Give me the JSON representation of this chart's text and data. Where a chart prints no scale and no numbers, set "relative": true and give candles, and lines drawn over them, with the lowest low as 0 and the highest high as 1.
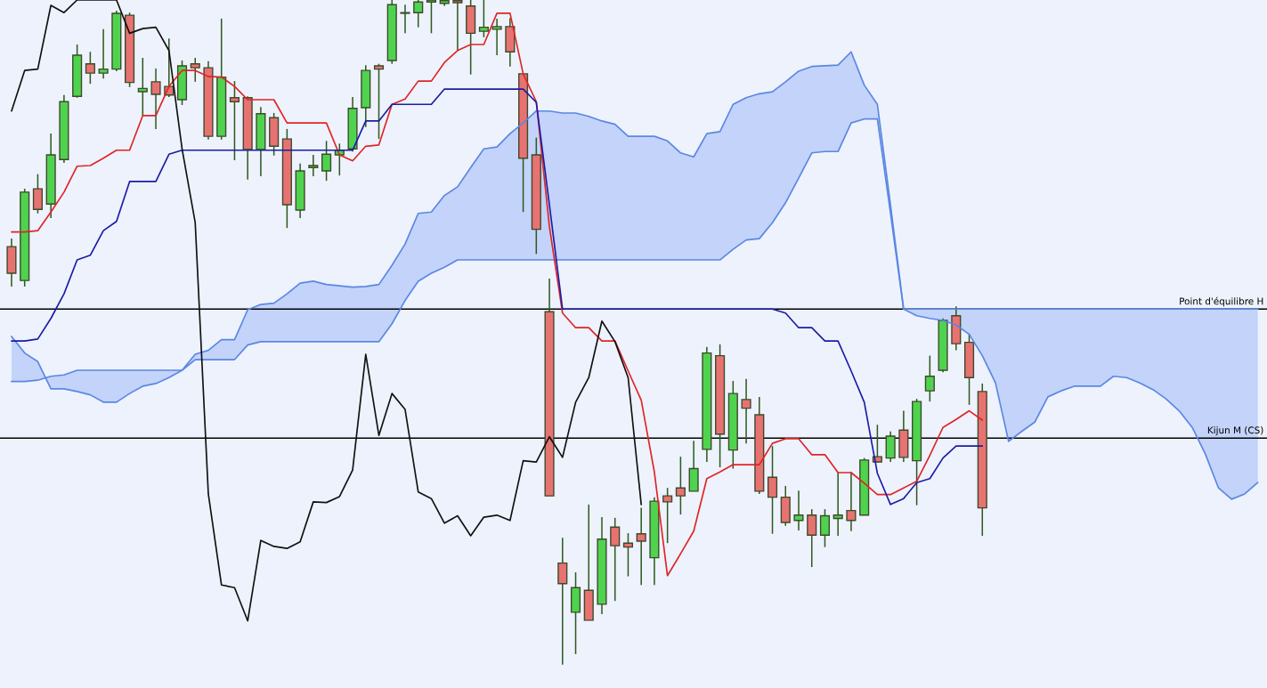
{
  "chart_data": {
    "type": "candlestick",
    "relative": true,
    "tick_labels": false,
    "categories": [
      null,
      null,
      null,
      null,
      null,
      null,
      null,
      null,
      null,
      null,
      null,
      null,
      null,
      null,
      null,
      null,
      null,
      null,
      null,
      null,
      null,
      null,
      null,
      null,
      null,
      null,
      null,
      null,
      null,
      null,
      null,
      null,
      null,
      null,
      null,
      null,
      null,
      null,
      null,
      null,
      null,
      null,
      null,
      null,
      null,
      null,
      null,
      null,
      null,
      null,
      null,
      null,
      null,
      null,
      null,
      null,
      null,
      null,
      null,
      null,
      null,
      null,
      null,
      null,
      null,
      null,
      null,
      null,
      null,
      null,
      null,
      null,
      null,
      null,
      null,
      null,
      null,
      null,
      null,
      null,
      null,
      null,
      null,
      null,
      null,
      null,
      null,
      null,
      null,
      null,
      null,
      null,
      null,
      null,
      null,
      null
    ],
    "ohlc": [
      [
        0.629,
        0.641,
        0.569,
        0.589
      ],
      [
        0.578,
        0.716,
        0.569,
        0.711
      ],
      [
        0.716,
        0.738,
        0.679,
        0.685
      ],
      [
        0.693,
        0.799,
        0.672,
        0.767
      ],
      [
        0.76,
        0.857,
        0.755,
        0.847
      ],
      [
        0.855,
        0.933,
        0.853,
        0.917
      ],
      [
        0.904,
        0.922,
        0.874,
        0.89
      ],
      [
        0.89,
        0.956,
        0.882,
        0.896
      ],
      [
        0.896,
        0.984,
        0.893,
        0.98
      ],
      [
        0.977,
        0.981,
        0.869,
        0.876
      ],
      [
        0.862,
        0.913,
        0.826,
        0.867
      ],
      [
        0.877,
        0.897,
        0.806,
        0.858
      ],
      [
        0.87,
        0.942,
        0.854,
        0.857
      ],
      [
        0.85,
        0.909,
        0.842,
        0.901
      ],
      [
        0.904,
        0.913,
        0.877,
        0.898
      ],
      [
        0.898,
        0.908,
        0.79,
        0.795
      ],
      [
        0.795,
        0.972,
        0.79,
        0.884
      ],
      [
        0.853,
        0.878,
        0.759,
        0.847
      ],
      [
        0.853,
        0.855,
        0.73,
        0.775
      ],
      [
        0.775,
        0.839,
        0.735,
        0.829
      ],
      [
        0.823,
        0.83,
        0.766,
        0.78
      ],
      [
        0.791,
        0.806,
        0.657,
        0.692
      ],
      [
        0.684,
        0.754,
        0.672,
        0.743
      ],
      [
        0.748,
        0.767,
        0.735,
        0.751
      ],
      [
        0.743,
        0.788,
        0.728,
        0.768
      ],
      [
        0.767,
        0.784,
        0.736,
        0.774
      ],
      [
        0.776,
        0.854,
        0.772,
        0.837
      ],
      [
        0.838,
        0.902,
        0.809,
        0.894
      ],
      [
        0.901,
        0.904,
        0.791,
        0.896
      ],
      [
        0.909,
        1,
        0.904,
        0.993
      ],
      [
        0.98,
        0.993,
        0.95,
        0.981
      ],
      [
        0.981,
        1,
        0.959,
        0.997
      ],
      [
        0.997,
        1,
        0.95,
        1
      ],
      [
        0.995,
        1,
        0.991,
        0.999
      ],
      [
        0.999,
        1,
        0.924,
        0.996
      ],
      [
        0.991,
        1,
        0.888,
        0.95
      ],
      [
        0.953,
        1,
        0.944,
        0.959
      ],
      [
        0.956,
        0.972,
        0.917,
        0.96
      ],
      [
        0.96,
        0.973,
        0.9,
        0.922
      ],
      [
        0.889,
        0.889,
        0.681,
        0.762
      ],
      [
        0.767,
        0.793,
        0.618,
        0.655
      ],
      [
        0.531,
        0.581,
        0.254,
        0.254
      ],
      [
        0.153,
        0.191,
        0,
        0.122
      ],
      [
        0.079,
        0.139,
        0.016,
        0.116
      ],
      [
        0.112,
        0.241,
        0.067,
        0.067
      ],
      [
        0.091,
        0.222,
        0.076,
        0.189
      ],
      [
        0.207,
        0.221,
        0.096,
        0.179
      ],
      [
        0.183,
        0.198,
        0.133,
        0.177
      ],
      [
        0.197,
        0.236,
        0.12,
        0.186
      ],
      [
        0.161,
        0.252,
        0.12,
        0.246
      ],
      [
        0.254,
        0.266,
        0.183,
        0.245
      ],
      [
        0.266,
        0.313,
        0.226,
        0.254
      ],
      [
        0.261,
        0.337,
        0.261,
        0.295
      ],
      [
        0.324,
        0.478,
        0.305,
        0.469
      ],
      [
        0.465,
        0.482,
        0.297,
        0.347
      ],
      [
        0.323,
        0.427,
        0.295,
        0.408
      ],
      [
        0.399,
        0.43,
        0.333,
        0.386
      ],
      [
        0.376,
        0.403,
        0.257,
        0.261
      ],
      [
        0.282,
        0.329,
        0.197,
        0.252
      ],
      [
        0.252,
        0.269,
        0.209,
        0.214
      ],
      [
        0.217,
        0.262,
        0.202,
        0.225
      ],
      [
        0.225,
        0.234,
        0.147,
        0.195
      ],
      [
        0.195,
        0.234,
        0.177,
        0.224
      ],
      [
        0.22,
        0.29,
        0.194,
        0.225
      ],
      [
        0.232,
        0.29,
        0.201,
        0.217
      ],
      [
        0.225,
        0.311,
        0.225,
        0.308
      ],
      [
        0.313,
        0.361,
        0.304,
        0.305
      ],
      [
        0.311,
        0.351,
        0.305,
        0.344
      ],
      [
        0.353,
        0.382,
        0.305,
        0.312
      ],
      [
        0.307,
        0.4,
        0.24,
        0.396
      ],
      [
        0.412,
        0.465,
        0.396,
        0.434
      ],
      [
        0.443,
        0.521,
        0.44,
        0.518
      ],
      [
        0.525,
        0.539,
        0.473,
        0.483
      ],
      [
        0.485,
        0.498,
        0.391,
        0.432
      ],
      [
        0.411,
        0.423,
        0.194,
        0.236
      ],
      null,
      null,
      null,
      null,
      null,
      null,
      null,
      null,
      null,
      null,
      null,
      null,
      null,
      null,
      null,
      null,
      null,
      null,
      null,
      null,
      null
    ],
    "series": [
      {
        "type": "line",
        "color": "#5b87e2",
        "values": [
          0.494,
          0.469,
          0.456,
          0.415,
          0.415,
          0.411,
          0.406,
          0.395,
          0.395,
          0.408,
          0.419,
          0.423,
          0.432,
          0.443,
          0.467,
          0.473,
          0.489,
          0.489,
          0.534,
          0.542,
          0.544,
          0.558,
          0.574,
          0.577,
          0.572,
          0.57,
          0.568,
          0.569,
          0.572,
          0.601,
          0.633,
          0.679,
          0.681,
          0.706,
          0.719,
          0.748,
          0.776,
          0.779,
          0.799,
          0.815,
          0.833,
          0.833,
          0.83,
          0.83,
          0.825,
          0.818,
          0.813,
          0.795,
          0.795,
          0.795,
          0.788,
          0.77,
          0.764,
          0.799,
          0.802,
          0.843,
          0.853,
          0.859,
          0.862,
          0.877,
          0.893,
          0.9,
          0.901,
          0.902,
          0.922,
          0.872,
          0.843,
          0.692,
          0.535,
          0.525,
          0.521,
          0.518,
          0.511,
          0.497,
          0.465,
          0.424,
          0.336,
          0.351,
          0.365,
          0.403,
          0.412,
          0.419,
          0.419,
          0.419,
          0.434,
          0.432,
          0.424,
          0.414,
          0.4,
          0.382,
          0.357,
          0.317,
          0.266,
          0.249,
          0.257,
          0.274
        ]
      },
      {
        "type": "line",
        "color": "#5b87e2",
        "values": [
          0.426,
          0.426,
          0.428,
          0.434,
          0.436,
          0.443,
          0.443,
          0.443,
          0.443,
          0.443,
          0.443,
          0.443,
          0.443,
          0.443,
          0.459,
          0.459,
          0.459,
          0.459,
          0.481,
          0.486,
          0.486,
          0.486,
          0.486,
          0.486,
          0.486,
          0.486,
          0.486,
          0.486,
          0.486,
          0.513,
          0.548,
          0.577,
          0.589,
          0.598,
          0.609,
          0.609,
          0.609,
          0.609,
          0.609,
          0.609,
          0.609,
          0.609,
          0.609,
          0.609,
          0.609,
          0.609,
          0.609,
          0.609,
          0.609,
          0.609,
          0.609,
          0.609,
          0.609,
          0.609,
          0.609,
          0.625,
          0.639,
          0.641,
          0.665,
          0.695,
          0.732,
          0.77,
          0.772,
          0.772,
          0.815,
          0.821,
          0.821,
          0.679,
          0.535,
          0.535,
          0.535,
          0.535,
          0.535,
          0.535,
          0.535,
          0.535,
          0.535,
          0.535,
          0.535,
          0.535,
          0.535,
          0.535,
          0.535,
          0.535,
          0.535,
          0.535,
          0.535,
          0.535,
          0.535,
          0.535,
          0.535,
          0.535,
          0.535,
          0.535,
          0.535,
          0.535
        ]
      },
      {
        "type": "line",
        "color": "#e02424",
        "values": [
          0.651,
          0.651,
          0.653,
          0.681,
          0.711,
          0.75,
          0.751,
          0.762,
          0.774,
          0.774,
          0.826,
          0.826,
          0.87,
          0.894,
          0.894,
          0.885,
          0.884,
          0.87,
          0.85,
          0.85,
          0.85,
          0.815,
          0.815,
          0.815,
          0.815,
          0.767,
          0.758,
          0.78,
          0.782,
          0.843,
          0.851,
          0.878,
          0.878,
          0.906,
          0.924,
          0.933,
          0.933,
          0.98,
          0.98,
          0.889,
          0.847,
          0.659,
          0.529,
          0.507,
          0.507,
          0.487,
          0.487,
          0.442,
          0.398,
          0.29,
          0.134,
          0.167,
          0.201,
          0.28,
          0.29,
          0.301,
          0.301,
          0.301,
          0.333,
          0.34,
          0.34,
          0.316,
          0.316,
          0.289,
          0.289,
          0.273,
          0.256,
          0.256,
          0.266,
          0.276,
          0.315,
          0.357,
          0.369,
          0.382,
          0.368,
          null,
          null,
          null,
          null,
          null,
          null,
          null,
          null,
          null,
          null,
          null,
          null,
          null,
          null,
          null,
          null,
          null,
          null,
          null,
          null,
          null
        ]
      },
      {
        "type": "line",
        "color": "#1c1ca6",
        "values": [
          0.487,
          0.487,
          0.49,
          0.521,
          0.558,
          0.609,
          0.616,
          0.653,
          0.667,
          0.727,
          0.727,
          0.727,
          0.768,
          0.774,
          0.774,
          0.774,
          0.774,
          0.774,
          0.774,
          0.774,
          0.774,
          0.774,
          0.774,
          0.774,
          0.774,
          0.774,
          0.774,
          0.818,
          0.818,
          0.843,
          0.843,
          0.843,
          0.843,
          0.866,
          0.866,
          0.866,
          0.866,
          0.866,
          0.866,
          0.866,
          0.846,
          0.692,
          0.535,
          0.535,
          0.535,
          0.535,
          0.535,
          0.535,
          0.535,
          0.535,
          0.535,
          0.535,
          0.535,
          0.535,
          0.535,
          0.535,
          0.535,
          0.535,
          0.535,
          0.529,
          0.507,
          0.507,
          0.487,
          0.487,
          0.442,
          0.395,
          0.288,
          0.241,
          0.25,
          0.274,
          0.28,
          0.311,
          0.329,
          0.329,
          0.329,
          null,
          null,
          null,
          null,
          null,
          null,
          null,
          null,
          null,
          null,
          null,
          null,
          null,
          null,
          null,
          null,
          null,
          null,
          null,
          null,
          null
        ]
      },
      {
        "type": "line",
        "color": "#111111",
        "values": [
          0.833,
          0.894,
          0.896,
          0.992,
          0.981,
          1,
          1,
          1,
          1,
          0.95,
          0.957,
          0.959,
          0.924,
          0.776,
          0.665,
          0.257,
          0.12,
          0.116,
          0.066,
          0.187,
          0.178,
          0.175,
          0.185,
          0.245,
          0.244,
          0.253,
          0.293,
          0.467,
          0.345,
          0.408,
          0.384,
          0.26,
          0.25,
          0.213,
          0.224,
          0.194,
          0.222,
          0.225,
          0.217,
          0.307,
          0.305,
          0.343,
          0.312,
          0.395,
          0.432,
          0.517,
          0.486,
          0.432,
          0.241,
          null,
          null,
          null,
          null,
          null,
          null,
          null,
          null,
          null,
          null,
          null,
          null,
          null,
          null,
          null,
          null,
          null,
          null,
          null,
          null,
          null,
          null,
          null,
          null,
          null,
          null,
          null,
          null,
          null,
          null,
          null,
          null,
          null,
          null,
          null,
          null,
          null,
          null,
          null,
          null,
          null,
          null,
          null,
          null,
          null,
          null,
          null
        ]
      }
    ],
    "ref_lines": [
      {
        "axis": "y",
        "value": 0.535,
        "label": "Point d'équilibre H",
        "color": "#000000"
      },
      {
        "axis": "y",
        "value": 0.341,
        "label": "Kijun M (CS)",
        "color": "#000000"
      }
    ]
  }
}
